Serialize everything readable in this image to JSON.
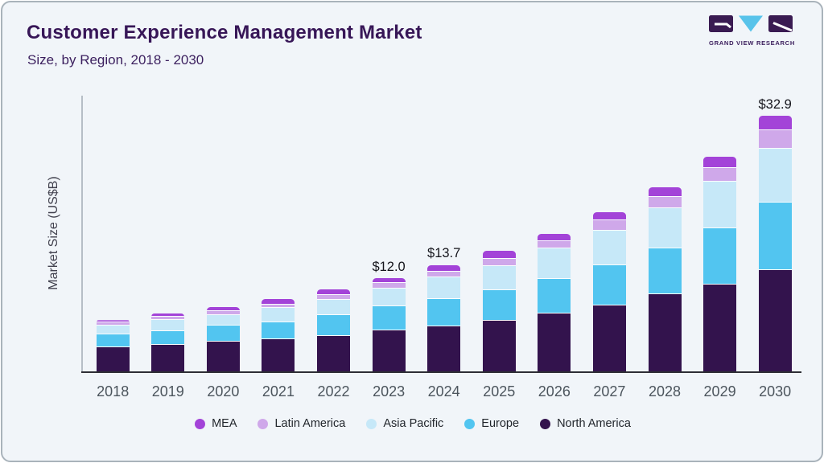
{
  "header": {
    "title": "Customer Experience Management Market",
    "subtitle": "Size, by Region, 2018 - 2030"
  },
  "logo": {
    "text": "GRAND VIEW RESEARCH",
    "dark_color": "#3a1b52",
    "blue_color": "#58c3ea"
  },
  "chart_data": {
    "type": "bar",
    "stacked": true,
    "title": "Customer Experience Management Market Size, by Region, 2018 - 2030",
    "ylabel": "Market Size (US$B)",
    "xlabel": "",
    "ylim": [
      0,
      35
    ],
    "yticks": [
      0,
      5,
      10,
      15,
      20,
      25,
      30,
      35
    ],
    "grid": false,
    "legend_position": "bottom",
    "categories": [
      "2018",
      "2019",
      "2020",
      "2021",
      "2022",
      "2023",
      "2024",
      "2025",
      "2026",
      "2027",
      "2028",
      "2029",
      "2030"
    ],
    "series": [
      {
        "name": "North America",
        "color": "#33134d",
        "values": [
          3.1,
          3.4,
          3.8,
          4.1,
          4.6,
          5.3,
          5.8,
          6.5,
          7.5,
          8.5,
          9.9,
          11.2,
          13.1
        ]
      },
      {
        "name": "Europe",
        "color": "#52c5f0",
        "values": [
          1.7,
          1.8,
          2.1,
          2.2,
          2.7,
          3.1,
          3.5,
          4.0,
          4.4,
          5.2,
          5.9,
          7.2,
          8.6
        ]
      },
      {
        "name": "Asia Pacific",
        "color": "#c6e8f8",
        "values": [
          1.1,
          1.4,
          1.4,
          1.9,
          1.9,
          2.3,
          2.8,
          3.1,
          3.9,
          4.4,
          5.2,
          6.0,
          7.0
        ]
      },
      {
        "name": "Latin America",
        "color": "#cfa8ea",
        "values": [
          0.4,
          0.4,
          0.5,
          0.4,
          0.6,
          0.7,
          0.7,
          0.9,
          1.0,
          1.4,
          1.5,
          1.8,
          2.4
        ]
      },
      {
        "name": "MEA",
        "color": "#a343d8",
        "values": [
          0.3,
          0.5,
          0.5,
          0.7,
          0.8,
          0.6,
          0.9,
          1.0,
          0.9,
          1.0,
          1.2,
          1.5,
          1.8
        ]
      }
    ],
    "totals": [
      6.6,
      7.5,
      8.3,
      9.3,
      10.6,
      12.0,
      13.7,
      15.5,
      17.7,
      20.5,
      23.7,
      27.7,
      32.9
    ],
    "annotations": [
      {
        "category": "2023",
        "text": "$12.0"
      },
      {
        "category": "2024",
        "text": "$13.7"
      },
      {
        "category": "2030",
        "text": "$32.9"
      }
    ],
    "legend": [
      "MEA",
      "Latin America",
      "Asia Pacific",
      "Europe",
      "North America"
    ]
  }
}
